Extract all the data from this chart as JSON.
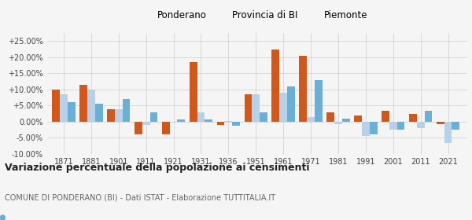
{
  "years": [
    1871,
    1881,
    1901,
    1911,
    1921,
    1931,
    1936,
    1951,
    1961,
    1971,
    1981,
    1991,
    2001,
    2011,
    2021
  ],
  "ponderano": [
    10.0,
    11.5,
    4.0,
    -4.0,
    -4.0,
    18.5,
    -1.0,
    8.5,
    22.5,
    20.5,
    3.0,
    2.0,
    3.5,
    2.5,
    -0.8
  ],
  "provincia_bi": [
    8.5,
    10.0,
    4.0,
    -1.0,
    -0.2,
    3.0,
    0.3,
    8.5,
    9.0,
    1.5,
    -0.7,
    -4.5,
    -2.5,
    -2.0,
    -6.5
  ],
  "piemonte": [
    6.0,
    5.5,
    7.0,
    2.8,
    0.8,
    0.7,
    -1.2,
    3.0,
    11.0,
    13.0,
    1.0,
    -4.0,
    -2.5,
    3.5,
    -2.5
  ],
  "color_ponderano": "#d2571a",
  "color_provincia": "#b8d0e8",
  "color_piemonte": "#6aafd6",
  "title": "Variazione percentuale della popolazione ai censimenti",
  "subtitle": "COMUNE DI PONDERANO (BI) - Dati ISTAT - Elaborazione TUTTITALIA.IT",
  "legend_labels": [
    "Ponderano",
    "Provincia di BI",
    "Piemonte"
  ],
  "ylim": [
    -10.0,
    27.5
  ],
  "yticks": [
    -10.0,
    -5.0,
    0.0,
    5.0,
    10.0,
    15.0,
    20.0,
    25.0
  ],
  "background_color": "#f5f5f5"
}
